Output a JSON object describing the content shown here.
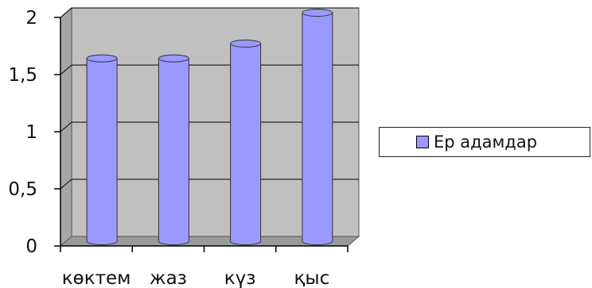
{
  "chart_data": {
    "type": "bar",
    "style": "3d-cylinder",
    "categories": [
      "көктем",
      "жаз",
      "күз",
      "қыс"
    ],
    "series": [
      {
        "name": "Ер адамдар",
        "values": [
          1.6,
          1.6,
          1.73,
          2.0
        ],
        "color": "#9999FF"
      }
    ],
    "ylim": [
      0,
      2
    ],
    "yticks": [
      "0",
      "0,5",
      "1",
      "1,5",
      "2"
    ],
    "grid": true,
    "legend": "right",
    "wall_color": "#C0C0C0"
  }
}
